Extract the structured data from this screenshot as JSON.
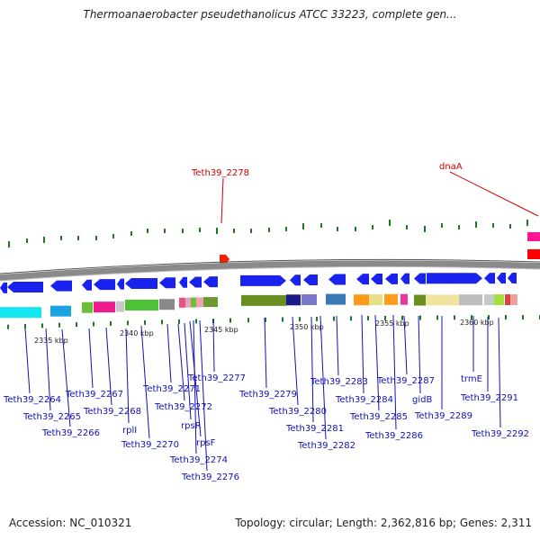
{
  "title": "Thermoanaerobacter pseudethanolicus ATCC 33223, complete gen...",
  "footer": {
    "accession": "Accession: NC_010321",
    "topology": "Topology: circular; Length: 2,362,816 bp; Genes: 2,311"
  },
  "ticks": [
    "2335 kbp",
    "2340 kbp",
    "2345 kbp",
    "2350 kbp",
    "2355 kbp",
    "2360 kbp"
  ],
  "highlighted_genes": [
    "Teth39_2278",
    "dnaA"
  ],
  "gene_labels": [
    "Teth39_2264",
    "Teth39_2265",
    "Teth39_2266",
    "Teth39_2267",
    "Teth39_2268",
    "rplI",
    "Teth39_2270",
    "Teth39_2271",
    "Teth39_2272",
    "rpsR",
    "rpsF",
    "Teth39_2274",
    "Teth39_2276",
    "Teth39_2277",
    "Teth39_2279",
    "Teth39_2280",
    "Teth39_2281",
    "Teth39_2282",
    "Teth39_2283",
    "Teth39_2284",
    "Teth39_2285",
    "Teth39_2286",
    "Teth39_2287",
    "gidB",
    "Teth39_2289",
    "trmE",
    "Teth39_2291",
    "Teth39_2292"
  ],
  "colors": {
    "gene_arrow": "#1a22ee",
    "label_blue": "#1010b8",
    "label_red": "#cc0000",
    "marker_green": "#1e7a1e",
    "backbone": "#8a8a8a"
  }
}
